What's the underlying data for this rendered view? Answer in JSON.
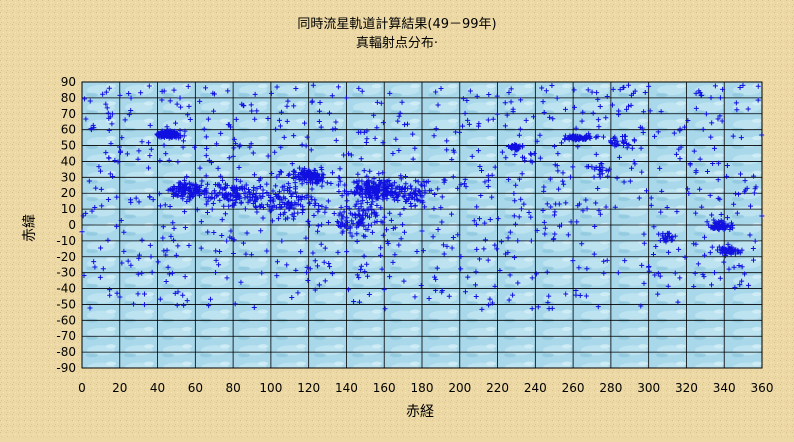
{
  "chart_data": {
    "type": "scatter",
    "title": "同時流星軌道計算結果(49－99年)",
    "subtitle": "真輻射点分布·",
    "xlabel": "赤経",
    "ylabel": "赤緯",
    "xlim": [
      0,
      360
    ],
    "ylim": [
      -90,
      90
    ],
    "xticks": [
      0,
      20,
      40,
      60,
      80,
      100,
      120,
      140,
      160,
      180,
      200,
      220,
      240,
      260,
      280,
      300,
      320,
      340,
      360
    ],
    "yticks": [
      90,
      80,
      70,
      60,
      50,
      40,
      30,
      20,
      10,
      0,
      -10,
      -20,
      -30,
      -40,
      -50,
      -60,
      -70,
      -80,
      -90
    ],
    "grid": true,
    "marker": "+",
    "marker_color": "#1010e0",
    "clusters": [
      {
        "ra": 46,
        "dec": 57,
        "ra_spread": 5,
        "dec_spread": 1.6,
        "count": 160
      },
      {
        "ra": 55,
        "dec": 22,
        "ra_spread": 9,
        "dec_spread": 4,
        "count": 110
      },
      {
        "ra": 80,
        "dec": 20,
        "ra_spread": 13,
        "dec_spread": 6,
        "count": 120
      },
      {
        "ra": 120,
        "dec": 31,
        "ra_spread": 8,
        "dec_spread": 3.5,
        "count": 110
      },
      {
        "ra": 110,
        "dec": 15,
        "ra_spread": 12,
        "dec_spread": 8,
        "count": 90
      },
      {
        "ra": 155,
        "dec": 22,
        "ra_spread": 12,
        "dec_spread": 7,
        "count": 170
      },
      {
        "ra": 145,
        "dec": 5,
        "ra_spread": 15,
        "dec_spread": 9,
        "count": 90
      },
      {
        "ra": 175,
        "dec": 20,
        "ra_spread": 9,
        "dec_spread": 7,
        "count": 60
      },
      {
        "ra": 230,
        "dec": 49,
        "ra_spread": 4,
        "dec_spread": 1.5,
        "count": 40
      },
      {
        "ra": 263,
        "dec": 55,
        "ra_spread": 7,
        "dec_spread": 1.5,
        "count": 60
      },
      {
        "ra": 338,
        "dec": -1,
        "ra_spread": 4,
        "dec_spread": 2.5,
        "count": 55
      },
      {
        "ra": 342,
        "dec": -16,
        "ra_spread": 6,
        "dec_spread": 2,
        "count": 55
      },
      {
        "ra": 310,
        "dec": -8,
        "ra_spread": 4,
        "dec_spread": 3,
        "count": 25
      },
      {
        "ra": 285,
        "dec": 52,
        "ra_spread": 5,
        "dec_spread": 3,
        "count": 25
      },
      {
        "ra": 275,
        "dec": 35,
        "ra_spread": 5,
        "dec_spread": 4,
        "count": 20
      }
    ],
    "background_points": 900,
    "background_ra_range": [
      0,
      360
    ],
    "background_dec_range": [
      -55,
      88
    ]
  }
}
